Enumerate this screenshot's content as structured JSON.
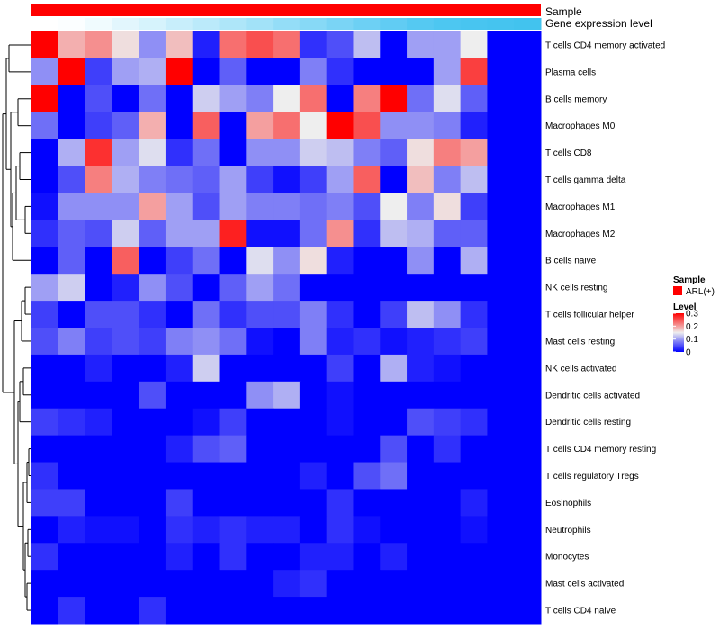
{
  "chart_data": {
    "type": "heatmap",
    "title": "",
    "annotations": [
      {
        "label": "Sample",
        "color": "#ff0000"
      },
      {
        "label": "Gene expression level",
        "colors": [
          "#ffffff",
          "#fbfeff",
          "#f0fbfe",
          "#e2f6fd",
          "#d6f3fc",
          "#c8eefb",
          "#bbeafa",
          "#aee6f9",
          "#a2e2f8",
          "#94ddf7",
          "#87d9f6",
          "#7ad4f5",
          "#6dd0f4",
          "#61ccf3",
          "#55c9f2",
          "#4dc7f1",
          "#48c5f0",
          "#45c4ef",
          "#42c3ee"
        ]
      }
    ],
    "rows": [
      "T cells CD4 memory activated",
      "Plasma cells",
      "B cells memory",
      "Macrophages M0",
      "T cells CD8",
      "T cells gamma delta",
      "Macrophages M1",
      "Macrophages M2",
      "B cells naive",
      "NK cells resting",
      "T cells follicular helper",
      "Mast cells resting",
      "NK cells activated",
      "Dendritic cells activated",
      "Dendritic cells resting",
      "T cells CD4 memory resting",
      "T cells regulatory  Tregs",
      "Eosinophils",
      "Neutrophils",
      "Monocytes",
      "Mast cells activated",
      "T cells CD4 naive"
    ],
    "n_columns": 19,
    "values": [
      [
        0.3,
        0.19,
        0.21,
        0.16,
        0.09,
        0.18,
        0.02,
        0.23,
        0.25,
        0.23,
        0.03,
        0.05,
        0.12,
        0.0,
        0.1,
        0.1,
        0.15,
        null,
        null
      ],
      [
        0.09,
        0.3,
        0.04,
        0.1,
        0.11,
        0.3,
        0.0,
        0.06,
        0.0,
        0.0,
        0.08,
        0.03,
        0.0,
        0.0,
        0.0,
        0.1,
        0.26,
        null,
        null
      ],
      [
        0.3,
        0.0,
        0.05,
        0.0,
        0.07,
        0.0,
        0.13,
        0.1,
        0.08,
        0.15,
        0.23,
        0.0,
        0.22,
        0.3,
        0.07,
        0.14,
        0.06,
        null,
        null
      ],
      [
        0.07,
        0.0,
        0.04,
        0.06,
        0.19,
        0.0,
        0.24,
        0.0,
        0.2,
        0.23,
        0.15,
        0.3,
        0.25,
        0.09,
        0.09,
        0.08,
        0.02,
        null,
        null
      ],
      [
        0.0,
        0.11,
        0.27,
        0.1,
        0.14,
        0.03,
        0.07,
        0.0,
        0.09,
        0.09,
        0.13,
        0.12,
        0.08,
        0.06,
        0.16,
        0.22,
        0.2,
        null,
        null
      ],
      [
        0.0,
        0.05,
        0.22,
        0.11,
        0.08,
        0.07,
        0.06,
        0.1,
        0.04,
        0.01,
        0.04,
        0.1,
        0.24,
        0.0,
        0.18,
        0.08,
        0.12,
        null,
        null
      ],
      [
        0.01,
        0.09,
        0.09,
        0.09,
        0.2,
        0.1,
        0.05,
        0.1,
        0.08,
        0.08,
        0.07,
        0.08,
        0.05,
        0.15,
        0.08,
        0.16,
        0.04,
        null,
        null
      ],
      [
        0.03,
        0.06,
        0.05,
        0.13,
        0.06,
        0.1,
        0.1,
        0.28,
        0.01,
        0.01,
        0.07,
        0.21,
        0.03,
        0.12,
        0.11,
        0.06,
        0.06,
        null,
        null
      ],
      [
        0.0,
        0.06,
        0.0,
        0.24,
        0.0,
        0.04,
        0.07,
        0.0,
        0.14,
        0.09,
        0.16,
        0.02,
        0.0,
        0.0,
        0.09,
        0.0,
        0.11,
        null,
        null
      ],
      [
        0.1,
        0.13,
        0.0,
        0.02,
        0.09,
        0.05,
        0.0,
        0.06,
        0.1,
        0.07,
        0.0,
        0.0,
        0.0,
        0.0,
        0.0,
        0.0,
        0.0,
        null,
        null
      ],
      [
        0.04,
        0.0,
        0.05,
        0.05,
        0.03,
        0.0,
        0.07,
        0.03,
        0.05,
        0.05,
        0.08,
        0.03,
        0.0,
        0.04,
        0.12,
        0.09,
        0.03,
        null,
        null
      ],
      [
        0.05,
        0.08,
        0.04,
        0.05,
        0.04,
        0.08,
        0.09,
        0.07,
        0.01,
        0.0,
        0.08,
        0.02,
        0.03,
        0.01,
        0.02,
        0.03,
        0.04,
        null,
        null
      ],
      [
        0.0,
        0.0,
        0.02,
        0.0,
        0.0,
        0.02,
        0.13,
        0.0,
        0.0,
        0.0,
        0.0,
        0.04,
        0.0,
        0.11,
        0.02,
        0.01,
        0.0,
        null,
        null
      ],
      [
        0.0,
        0.0,
        0.0,
        0.0,
        0.05,
        0.0,
        0.0,
        0.0,
        0.09,
        0.11,
        0.0,
        0.01,
        0.0,
        0.0,
        0.0,
        0.0,
        0.0,
        null,
        null
      ],
      [
        0.04,
        0.03,
        0.02,
        0.0,
        0.0,
        0.0,
        0.01,
        0.04,
        0.0,
        0.0,
        0.0,
        0.01,
        0.0,
        0.0,
        0.05,
        0.04,
        0.03,
        null,
        null
      ],
      [
        0.0,
        0.0,
        0.0,
        0.0,
        0.0,
        0.02,
        0.05,
        0.06,
        0.0,
        0.0,
        0.0,
        0.0,
        0.0,
        0.05,
        0.0,
        0.03,
        0.0,
        null,
        null
      ],
      [
        0.03,
        0.0,
        0.0,
        0.0,
        0.0,
        0.0,
        0.0,
        0.0,
        0.0,
        0.0,
        0.02,
        0.0,
        0.05,
        0.07,
        0.0,
        0.0,
        0.0,
        null,
        null
      ],
      [
        0.04,
        0.04,
        0.0,
        0.0,
        0.0,
        0.04,
        0.0,
        0.0,
        0.0,
        0.0,
        0.0,
        0.03,
        0.0,
        0.0,
        0.0,
        0.0,
        0.02,
        null,
        null
      ],
      [
        0.0,
        0.02,
        0.01,
        0.01,
        0.0,
        0.03,
        0.02,
        0.03,
        0.02,
        0.02,
        0.0,
        0.03,
        0.01,
        0.0,
        0.0,
        0.0,
        0.01,
        null,
        null
      ],
      [
        0.03,
        0.0,
        0.0,
        0.0,
        0.0,
        0.02,
        0.0,
        0.03,
        0.0,
        0.0,
        0.02,
        0.02,
        0.0,
        0.02,
        0.0,
        0.0,
        0.0,
        null,
        null
      ],
      [
        0.0,
        0.0,
        0.0,
        0.0,
        0.0,
        0.0,
        0.0,
        0.0,
        0.0,
        0.02,
        0.03,
        0.0,
        0.0,
        0.0,
        0.0,
        0.0,
        0.0,
        null,
        null
      ],
      [
        0.0,
        0.03,
        0.0,
        0.0,
        0.03,
        0.0,
        0.0,
        0.0,
        0.0,
        0.0,
        0.0,
        0.0,
        0.0,
        0.0,
        0.0,
        0.0,
        0.0,
        null,
        null
      ]
    ],
    "color_scale": {
      "stops": [
        {
          "value": 0.0,
          "color": "#0000ff"
        },
        {
          "value": 0.15,
          "color": "#eeeeee"
        },
        {
          "value": 0.3,
          "color": "#ff0000"
        }
      ]
    },
    "legend": {
      "sample_title": "Sample",
      "sample_entry": "ARL(+)",
      "sample_color": "#ff0000",
      "level_title": "Level",
      "level_ticks": [
        "0.3",
        "0.2",
        "0.1",
        "0"
      ],
      "level_tick_values": [
        0.3,
        0.2,
        0.1,
        0.0
      ],
      "placement": "right"
    }
  }
}
